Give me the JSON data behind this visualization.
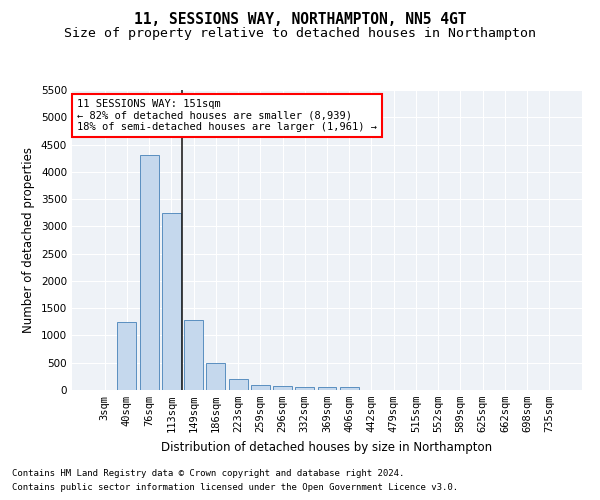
{
  "title": "11, SESSIONS WAY, NORTHAMPTON, NN5 4GT",
  "subtitle": "Size of property relative to detached houses in Northampton",
  "xlabel": "Distribution of detached houses by size in Northampton",
  "ylabel": "Number of detached properties",
  "footnote1": "Contains HM Land Registry data © Crown copyright and database right 2024.",
  "footnote2": "Contains public sector information licensed under the Open Government Licence v3.0.",
  "categories": [
    "3sqm",
    "40sqm",
    "76sqm",
    "113sqm",
    "149sqm",
    "186sqm",
    "223sqm",
    "259sqm",
    "296sqm",
    "332sqm",
    "369sqm",
    "406sqm",
    "442sqm",
    "479sqm",
    "515sqm",
    "552sqm",
    "589sqm",
    "625sqm",
    "662sqm",
    "698sqm",
    "735sqm"
  ],
  "bar_values": [
    0,
    1250,
    4300,
    3250,
    1280,
    500,
    200,
    100,
    70,
    50,
    50,
    50,
    0,
    0,
    0,
    0,
    0,
    0,
    0,
    0,
    0
  ],
  "bar_color": "#c5d8ed",
  "bar_edge_color": "#5a8fc0",
  "property_label": "11 SESSIONS WAY: 151sqm",
  "annotation_line1": "← 82% of detached houses are smaller (8,939)",
  "annotation_line2": "18% of semi-detached houses are larger (1,961) →",
  "annotation_box_color": "white",
  "annotation_box_edge_color": "red",
  "ylim": [
    0,
    5500
  ],
  "yticks": [
    0,
    500,
    1000,
    1500,
    2000,
    2500,
    3000,
    3500,
    4000,
    4500,
    5000,
    5500
  ],
  "bg_color": "#eef2f7",
  "grid_color": "white",
  "title_fontsize": 10.5,
  "subtitle_fontsize": 9.5,
  "axis_label_fontsize": 8.5,
  "tick_fontsize": 7.5,
  "annot_fontsize": 7.5,
  "footnote_fontsize": 6.5
}
